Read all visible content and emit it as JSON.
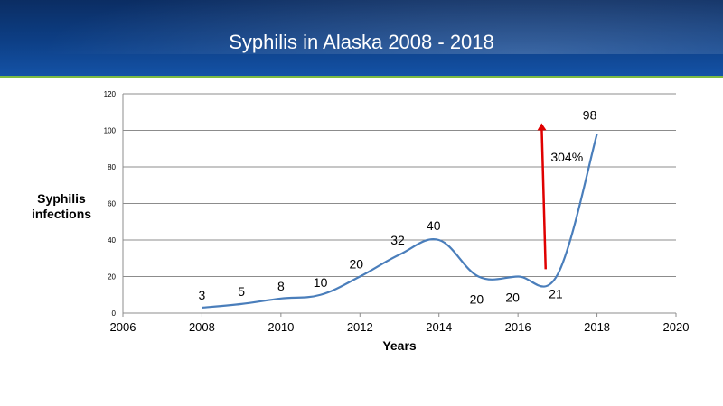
{
  "slide": {
    "title": "Syphilis in Alaska 2008 - 2018"
  },
  "colors": {
    "header": "#0d3f86",
    "accent_rule": "#7dbb43",
    "series_line": "#4a7ebb",
    "arrow": "#e00000"
  },
  "chart_data": {
    "type": "line",
    "title": "",
    "xlabel": "Years",
    "ylabel_lines": [
      "Syphilis",
      "infections"
    ],
    "xlim": [
      2006,
      2020
    ],
    "ylim": [
      0,
      120
    ],
    "xticks": [
      2006,
      2008,
      2010,
      2012,
      2014,
      2016,
      2018,
      2020
    ],
    "yticks": [
      0,
      20,
      40,
      60,
      80,
      100,
      120
    ],
    "grid": "horizontal",
    "series": [
      {
        "x": [
          2008,
          2009,
          2010,
          2011,
          2012,
          2013,
          2014,
          2015,
          2016,
          2017,
          2018
        ],
        "y": [
          3,
          5,
          8,
          10,
          20,
          32,
          40,
          20,
          20,
          21,
          98
        ]
      }
    ],
    "data_labels": [
      "3",
      "5",
      "8",
      "10",
      "20",
      "32",
      "40",
      "20",
      "20",
      "21",
      "98"
    ],
    "annotation": {
      "text": "304%",
      "arrow_from": [
        2016.7,
        24
      ],
      "arrow_to": [
        2016.6,
        102
      ]
    }
  }
}
